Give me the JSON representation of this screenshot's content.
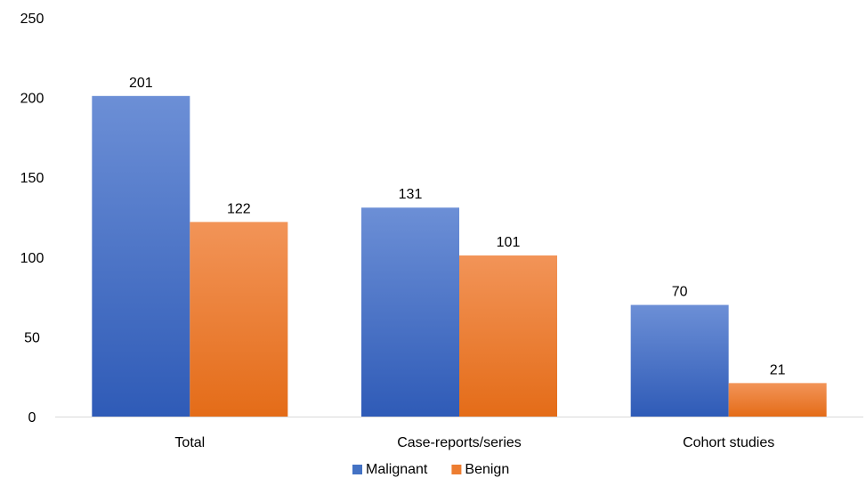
{
  "chart_data": {
    "type": "bar",
    "title": "",
    "xlabel": "",
    "ylabel": "",
    "categories": [
      "Total",
      "Case-reports/series",
      "Cohort studies"
    ],
    "series": [
      {
        "name": "Malignant",
        "values": [
          201,
          131,
          70
        ],
        "color": "#4472C4"
      },
      {
        "name": "Benign",
        "values": [
          122,
          101,
          21
        ],
        "color": "#ED7D31"
      }
    ],
    "ylim": [
      0,
      250
    ],
    "yticks": [
      0,
      50,
      100,
      150,
      200,
      250
    ],
    "grid": false,
    "legend": "bottom"
  }
}
